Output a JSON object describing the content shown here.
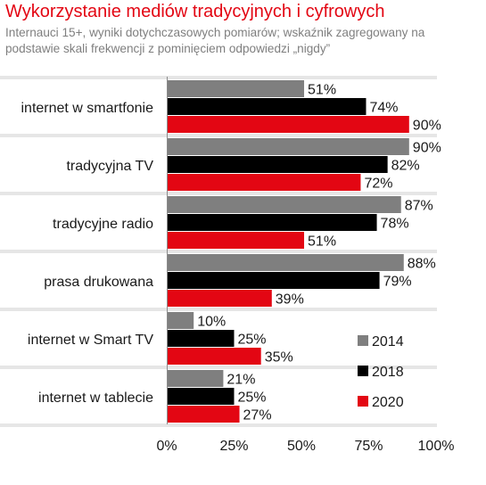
{
  "chart_data": {
    "type": "bar",
    "orientation": "horizontal",
    "title": "Wykorzystanie mediów tradycyjnych i cyfrowych",
    "subtitle": "Internauci 15+, wyniki dotychczasowych pomiarów; wskaźnik zagregowany na podstawie skali frekwencji z pominięciem odpowiedzi „nigdy”",
    "categories": [
      "internet w smartfonie",
      "tradycyjna TV",
      "tradycyjne radio",
      "prasa drukowana",
      "internet w Smart TV",
      "internet w tablecie"
    ],
    "series": [
      {
        "name": "2014",
        "color": "#7f7f7f",
        "values": [
          51,
          90,
          87,
          88,
          10,
          21
        ],
        "labels": [
          "51%",
          "90%",
          "87%",
          "88%",
          "10%",
          "21%"
        ]
      },
      {
        "name": "2018",
        "color": "#000000",
        "values": [
          74,
          82,
          78,
          79,
          25,
          25
        ],
        "labels": [
          "74%",
          "82%",
          "78%",
          "79%",
          "25%",
          "25%"
        ]
      },
      {
        "name": "2020",
        "color": "#e30613",
        "values": [
          90,
          72,
          51,
          39,
          35,
          27
        ],
        "labels": [
          "90%",
          "72%",
          "51%",
          "39%",
          "35%",
          "27%"
        ]
      }
    ],
    "xlim": [
      0,
      100
    ],
    "xticks": [
      "0%",
      "25%",
      "50%",
      "75%",
      "100%"
    ],
    "grid": false,
    "legend_position": "lower-right",
    "xlabel": "",
    "ylabel": ""
  }
}
